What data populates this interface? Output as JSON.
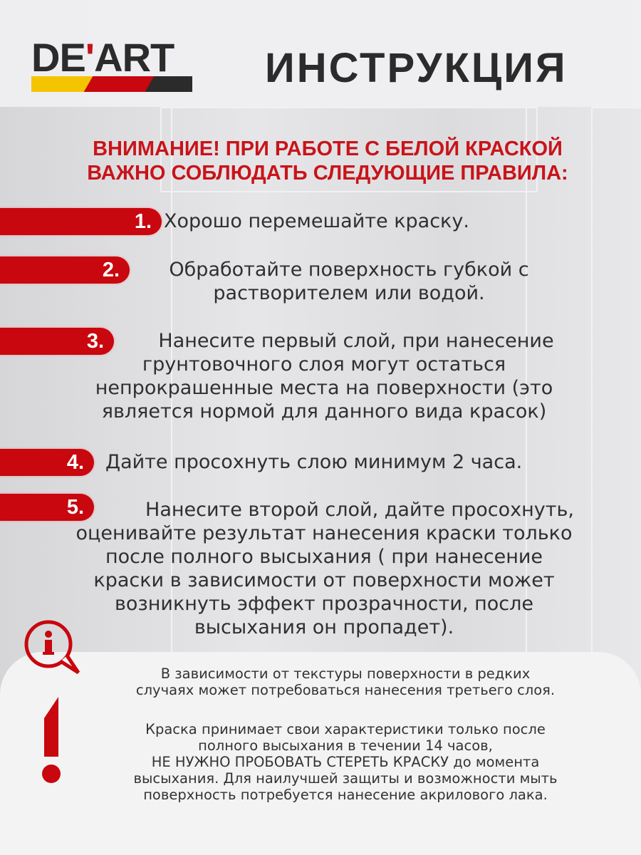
{
  "brand": {
    "logo_text": "DE'ART",
    "colors": [
      "#f5c400",
      "#c8070e",
      "#2b2b2b"
    ]
  },
  "title": "ИНСТРУКЦИЯ",
  "warning": {
    "line1": "ВНИМАНИЕ! ПРИ РАБОТЕ С БЕЛОЙ КРАСКОЙ",
    "line2": "ВАЖНО СОБЛЮДАТЬ СЛЕДУЮЩИЕ ПРАВИЛА:"
  },
  "steps": [
    {
      "number": "1.",
      "lines": [
        "Хорошо перемешайте краску."
      ]
    },
    {
      "number": "2.",
      "lines": [
        "Обработайте поверхность губкой с",
        "растворителем или водой."
      ]
    },
    {
      "number": "3.",
      "lines": [
        "Нанесите первый слой, при нанесение",
        "грунтовочного слоя могут остаться",
        "непрокрашенные места на поверхности (это",
        "является нормой для данного вида красок)"
      ]
    },
    {
      "number": "4.",
      "lines": [
        "Дайте просохнуть слою минимум 2 часа."
      ]
    },
    {
      "number": "5.",
      "lines": [
        "Нанесите второй слой, дайте просохнуть,",
        "оценивайте результат нанесения краски только",
        "после полного высыхания ( при нанесение",
        "краски в зависимости от поверхности может",
        "возникнуть эффект прозрачности, после",
        "высыхания он пропадет)."
      ]
    }
  ],
  "notes": {
    "p1": [
      "В зависимости от текстуры поверхности в редких",
      "случаях может потребоваться нанесения третьего слоя."
    ],
    "p2": [
      "Краска принимает свои характеристики только после",
      "полного высыхания в течении 14 часов,",
      "НЕ НУЖНО  ПРОБОВАТЬ СТЕРЕТЬ КРАСКУ до момента",
      "высыхания. Для наилучшей защиты и возможности мыть",
      "поверхность потребуется нанесение акрилового лака."
    ]
  },
  "icons": {
    "info": "info-speech-bubble-icon",
    "exclamation": "exclamation-icon"
  },
  "accent": "#c8070e"
}
